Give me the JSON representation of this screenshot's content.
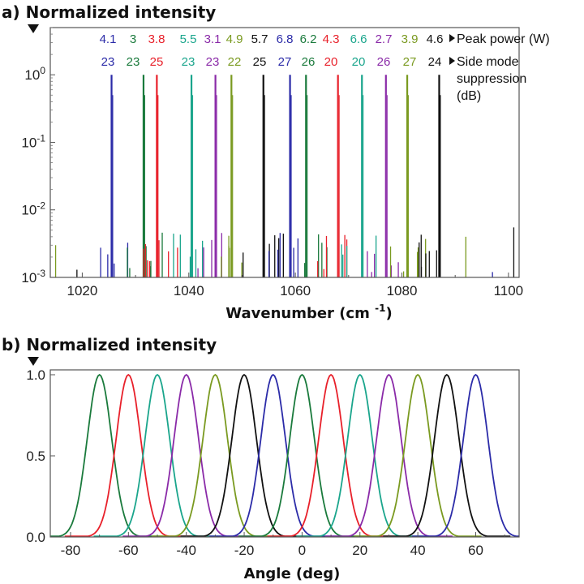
{
  "figure": {
    "panel_a_title": "a) Normalized intensity",
    "panel_b_title": "b) Normalized intensity"
  },
  "chart_data": [
    {
      "type": "line",
      "panel": "a",
      "title": "a) Normalized intensity",
      "xlabel": "Wavenumber (cm-1)",
      "ylabel": "Normalized intensity",
      "x_scale": "linear",
      "y_scale": "log",
      "xlim": [
        1014,
        1102
      ],
      "ylim": [
        0.001,
        5
      ],
      "xticks": [
        1020,
        1040,
        1060,
        1080,
        1100
      ],
      "yticks": [
        {
          "value": 1,
          "label": "10^0"
        },
        {
          "value": 0.1,
          "label": "10^-1"
        },
        {
          "value": 0.01,
          "label": "10^-2"
        },
        {
          "value": 0.001,
          "label": "10^-3"
        }
      ],
      "peak_power_label": "Peak power (W)",
      "smsr_label_lines": [
        "Side mode",
        "suppression",
        "(dB)"
      ],
      "series": [
        {
          "color": "#2b2ba8",
          "peak_wavenumber": 1025.5,
          "peak_power_W": "4.1",
          "smsr_dB": "23"
        },
        {
          "color": "#1a7a3c",
          "peak_wavenumber": 1031.5,
          "peak_power_W": "3",
          "smsr_dB": "23"
        },
        {
          "color": "#e8202a",
          "peak_wavenumber": 1034.0,
          "peak_power_W": "3.8",
          "smsr_dB": "25"
        },
        {
          "color": "#1aa58c",
          "peak_wavenumber": 1040.5,
          "peak_power_W": "5.5",
          "smsr_dB": "23"
        },
        {
          "color": "#8a2aa8",
          "peak_wavenumber": 1045.0,
          "peak_power_W": "3.1",
          "smsr_dB": "23"
        },
        {
          "color": "#7a9a20",
          "peak_wavenumber": 1048.0,
          "peak_power_W": "4.9",
          "smsr_dB": "22"
        },
        {
          "color": "#111111",
          "peak_wavenumber": 1054.0,
          "peak_power_W": "5.7",
          "smsr_dB": "25"
        },
        {
          "color": "#2b2ba8",
          "peak_wavenumber": 1059.0,
          "peak_power_W": "6.8",
          "smsr_dB": "27"
        },
        {
          "color": "#1a7a3c",
          "peak_wavenumber": 1062.0,
          "peak_power_W": "6.2",
          "smsr_dB": "26"
        },
        {
          "color": "#e8202a",
          "peak_wavenumber": 1068.0,
          "peak_power_W": "4.3",
          "smsr_dB": "20"
        },
        {
          "color": "#1aa58c",
          "peak_wavenumber": 1072.5,
          "peak_power_W": "6.6",
          "smsr_dB": "20"
        },
        {
          "color": "#8a2aa8",
          "peak_wavenumber": 1077.0,
          "peak_power_W": "2.7",
          "smsr_dB": "26"
        },
        {
          "color": "#7a9a20",
          "peak_wavenumber": 1081.0,
          "peak_power_W": "3.9",
          "smsr_dB": "27"
        },
        {
          "color": "#111111",
          "peak_wavenumber": 1087.0,
          "peak_power_W": "4.6",
          "smsr_dB": "24"
        }
      ]
    },
    {
      "type": "line",
      "panel": "b",
      "title": "b) Normalized intensity",
      "xlabel": "Angle (deg)",
      "ylabel": "Normalized intensity",
      "xlim": [
        -87,
        75
      ],
      "ylim": [
        0,
        1.03
      ],
      "xticks": [
        -80,
        -60,
        -40,
        -20,
        0,
        20,
        40,
        60
      ],
      "yticks": [
        {
          "value": 0,
          "label": "0.0"
        },
        {
          "value": 0.5,
          "label": "0.5"
        },
        {
          "value": 1,
          "label": "1.0"
        }
      ],
      "series": [
        {
          "color": "#1a7a3c",
          "peak_deg": -70,
          "fwhm_deg": 10,
          "peak": 1.0
        },
        {
          "color": "#e8202a",
          "peak_deg": -60,
          "fwhm_deg": 10,
          "peak": 1.0
        },
        {
          "color": "#1aa58c",
          "peak_deg": -50,
          "fwhm_deg": 10,
          "peak": 1.0
        },
        {
          "color": "#8a2aa8",
          "peak_deg": -40,
          "fwhm_deg": 10,
          "peak": 1.0
        },
        {
          "color": "#7a9a20",
          "peak_deg": -30,
          "fwhm_deg": 10,
          "peak": 1.0
        },
        {
          "color": "#111111",
          "peak_deg": -20,
          "fwhm_deg": 10,
          "peak": 1.0
        },
        {
          "color": "#2b2ba8",
          "peak_deg": -10,
          "fwhm_deg": 10,
          "peak": 1.0
        },
        {
          "color": "#1a7a3c",
          "peak_deg": 0,
          "fwhm_deg": 10,
          "peak": 1.0
        },
        {
          "color": "#e8202a",
          "peak_deg": 10,
          "fwhm_deg": 10,
          "peak": 1.0
        },
        {
          "color": "#1aa58c",
          "peak_deg": 20,
          "fwhm_deg": 10,
          "peak": 1.0
        },
        {
          "color": "#8a2aa8",
          "peak_deg": 30,
          "fwhm_deg": 10,
          "peak": 1.0
        },
        {
          "color": "#7a9a20",
          "peak_deg": 40,
          "fwhm_deg": 10,
          "peak": 1.0
        },
        {
          "color": "#111111",
          "peak_deg": 50,
          "fwhm_deg": 10,
          "peak": 1.0
        },
        {
          "color": "#2b2ba8",
          "peak_deg": 60,
          "fwhm_deg": 10,
          "peak": 1.0
        }
      ]
    }
  ]
}
